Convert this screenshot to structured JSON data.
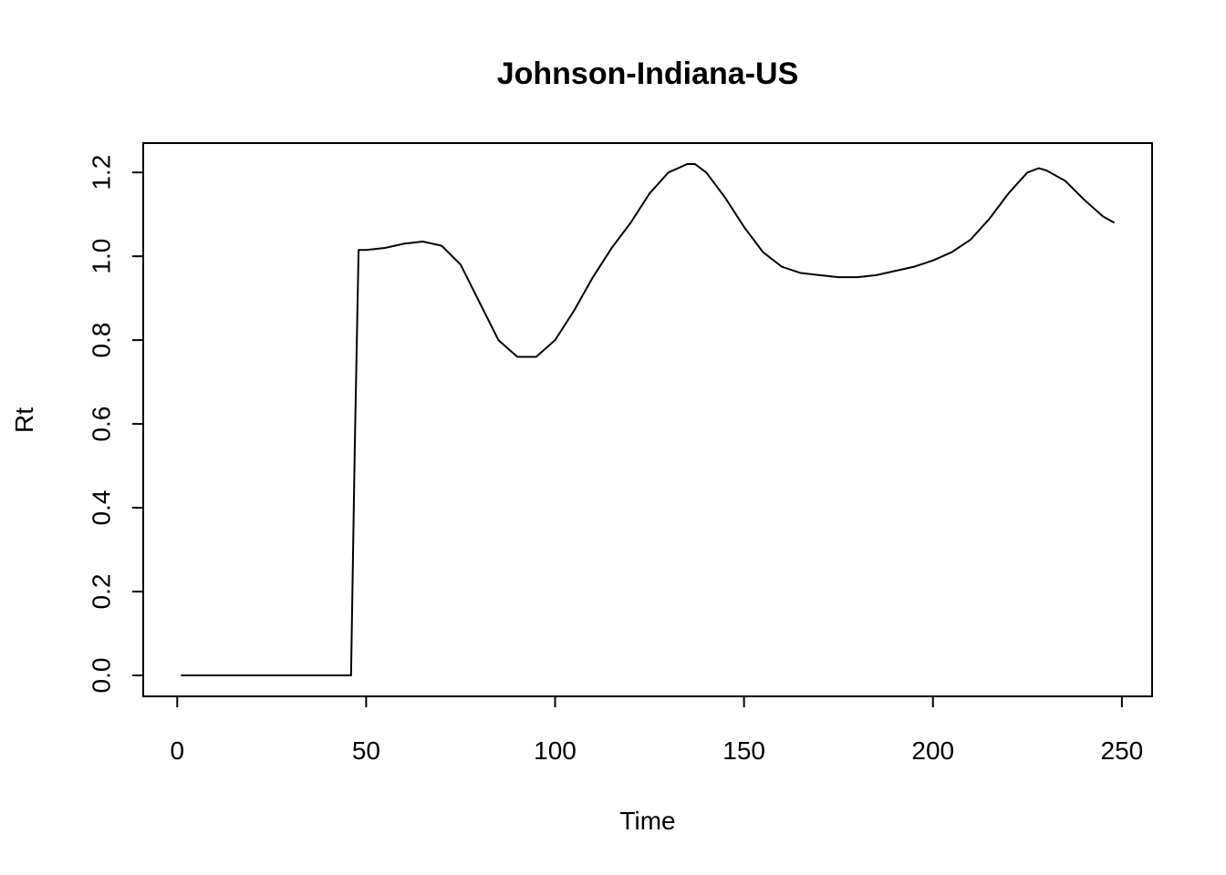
{
  "chart_data": {
    "type": "line",
    "title": "Johnson-Indiana-US",
    "xlabel": "Time",
    "ylabel": "Rt",
    "xlim": [
      -9,
      258
    ],
    "ylim": [
      -0.05,
      1.27
    ],
    "x_ticks": [
      0,
      50,
      100,
      150,
      200,
      250
    ],
    "y_ticks": [
      0.0,
      0.2,
      0.4,
      0.6,
      0.8,
      1.0,
      1.2
    ],
    "y_tick_labels": [
      "0.0",
      "0.2",
      "0.4",
      "0.6",
      "0.8",
      "1.0",
      "1.2"
    ],
    "grid": false,
    "legend": "none",
    "line_color": "#000000",
    "series": [
      {
        "x": [
          1,
          10,
          20,
          30,
          40,
          46,
          47,
          48,
          50,
          55,
          60,
          65,
          70,
          75,
          80,
          85,
          90,
          95,
          100,
          105,
          110,
          115,
          120,
          125,
          130,
          135,
          137,
          140,
          145,
          150,
          155,
          160,
          165,
          170,
          175,
          180,
          185,
          190,
          195,
          200,
          205,
          210,
          215,
          220,
          225,
          228,
          230,
          235,
          240,
          245,
          248
        ],
        "y": [
          0.0,
          0.0,
          0.0,
          0.0,
          0.0,
          0.0,
          0.55,
          1.015,
          1.015,
          1.02,
          1.03,
          1.035,
          1.025,
          0.98,
          0.89,
          0.8,
          0.76,
          0.76,
          0.8,
          0.87,
          0.95,
          1.02,
          1.08,
          1.15,
          1.2,
          1.22,
          1.22,
          1.2,
          1.14,
          1.07,
          1.01,
          0.975,
          0.96,
          0.955,
          0.95,
          0.95,
          0.955,
          0.965,
          0.975,
          0.99,
          1.01,
          1.04,
          1.09,
          1.15,
          1.2,
          1.21,
          1.205,
          1.18,
          1.135,
          1.095,
          1.08
        ]
      }
    ]
  }
}
